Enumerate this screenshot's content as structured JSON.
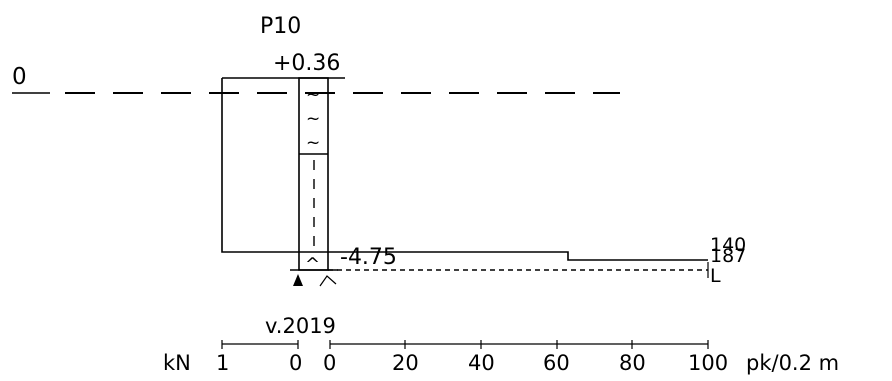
{
  "sounding": {
    "id": "P10",
    "top_level": "+0.36",
    "bottom_level": "-4.75",
    "reference_level": "0",
    "year": "v.2019",
    "soil_symbols": [
      "~",
      "~",
      "~"
    ],
    "bottom_symbol": "^"
  },
  "resistance_labels": {
    "value_a": "140",
    "value_b": "187",
    "end_marker": "L"
  },
  "scale_force": {
    "unit": "kN",
    "ticks": [
      "1",
      "0"
    ]
  },
  "scale_penetration": {
    "ticks": [
      "0",
      "20",
      "40",
      "60",
      "80",
      "100"
    ],
    "unit": "pk/0.2 m"
  }
}
